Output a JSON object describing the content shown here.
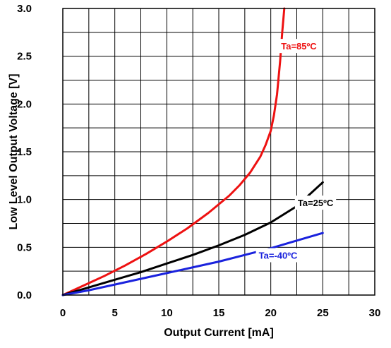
{
  "chart_data": {
    "type": "line",
    "title": "",
    "xlabel": "Output Current [mA]",
    "ylabel": "Low Level Output Voltage [V]",
    "xlim": [
      0,
      30
    ],
    "ylim": [
      0,
      3.0
    ],
    "x_ticks": [
      0,
      5,
      10,
      15,
      20,
      25,
      30
    ],
    "x_tick_labels": [
      "0",
      "5",
      "10",
      "15",
      "20",
      "25",
      "30"
    ],
    "y_ticks": [
      0,
      0.5,
      1.0,
      1.5,
      2.0,
      2.5,
      3.0
    ],
    "y_tick_labels": [
      "0.0",
      "0.5",
      "1.0",
      "1.5",
      "2.0",
      "2.5",
      "3.0"
    ],
    "x_minor_step": 2.5,
    "y_minor_step": 0.25,
    "grid": true,
    "series": [
      {
        "name": "Ta=85ºC",
        "color": "#ee1111",
        "points": [
          [
            0,
            0
          ],
          [
            2,
            0.1
          ],
          [
            4,
            0.2
          ],
          [
            6,
            0.31
          ],
          [
            8,
            0.43
          ],
          [
            10,
            0.56
          ],
          [
            12,
            0.7
          ],
          [
            14,
            0.86
          ],
          [
            16,
            1.04
          ],
          [
            17,
            1.15
          ],
          [
            18,
            1.28
          ],
          [
            19,
            1.45
          ],
          [
            19.5,
            1.57
          ],
          [
            20,
            1.72
          ],
          [
            20.3,
            1.88
          ],
          [
            20.6,
            2.1
          ],
          [
            20.9,
            2.45
          ],
          [
            21.1,
            2.75
          ],
          [
            21.3,
            3.0
          ]
        ],
        "label_anchor": [
          22.7,
          2.6
        ]
      },
      {
        "name": "Ta=25ºC",
        "color": "#000000",
        "points": [
          [
            0,
            0
          ],
          [
            2.5,
            0.08
          ],
          [
            5,
            0.16
          ],
          [
            7.5,
            0.24
          ],
          [
            10,
            0.33
          ],
          [
            12.5,
            0.42
          ],
          [
            15,
            0.52
          ],
          [
            17.5,
            0.63
          ],
          [
            20,
            0.76
          ],
          [
            22.5,
            0.93
          ],
          [
            25,
            1.18
          ]
        ],
        "label_anchor": [
          24.3,
          0.96
        ]
      },
      {
        "name": "Ta=-40ºC",
        "color": "#1a22dd",
        "points": [
          [
            0,
            0
          ],
          [
            2.5,
            0.05
          ],
          [
            5,
            0.11
          ],
          [
            7.5,
            0.17
          ],
          [
            10,
            0.23
          ],
          [
            12.5,
            0.29
          ],
          [
            15,
            0.35
          ],
          [
            17.5,
            0.42
          ],
          [
            20,
            0.49
          ],
          [
            22.5,
            0.57
          ],
          [
            25,
            0.65
          ]
        ],
        "label_anchor": [
          20.7,
          0.41
        ]
      }
    ]
  }
}
